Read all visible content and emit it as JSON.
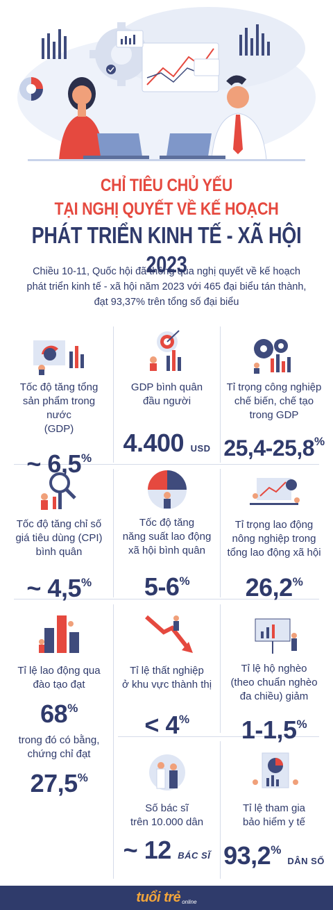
{
  "title": {
    "line1": "CHỈ TIÊU CHỦ YẾU",
    "line2": "TẠI NGHỊ QUYẾT VỀ KẾ HOẠCH",
    "line3": "PHÁT TRIỂN KINH TẾ - XÃ HỘI 2023"
  },
  "intro": {
    "line1": "Chiều 10-11, Quốc hội đã thông qua nghị quyết về kế hoạch",
    "line2": "phát triển kinh tế - xã hội năm 2023 với 465 đại biểu tán thành,",
    "line3": "đạt 93,37% trên tổng số đại biểu"
  },
  "items": [
    {
      "l1": "Tốc độ tăng tổng",
      "l2": "sản phẩm trong nước",
      "l3": "(GDP)",
      "prefix": "~ ",
      "num": "6,5",
      "sup": "%",
      "unit": ""
    },
    {
      "l1": "GDP bình quân",
      "l2": "đầu người",
      "l3": "",
      "prefix": "",
      "num": "4.400",
      "sup": "",
      "unit": "USD"
    },
    {
      "l1": "Tỉ trọng công nghiệp",
      "l2": "chế biến, chế tạo",
      "l3": "trong GDP",
      "prefix": "",
      "num": "25,4-25,8",
      "sup": "%",
      "unit": ""
    },
    {
      "l1": "Tốc độ tăng chỉ số",
      "l2": "giá tiêu dùng (CPI)",
      "l3": "bình quân",
      "prefix": "~ ",
      "num": "4,5",
      "sup": "%",
      "unit": ""
    },
    {
      "l1": "Tốc độ tăng",
      "l2": "năng suất lao động",
      "l3": "xã hội bình quân",
      "prefix": "",
      "num": "5-6",
      "sup": "%",
      "unit": ""
    },
    {
      "l1": "Tỉ trọng lao động",
      "l2": "nông nghiệp trong",
      "l3": "tổng lao động xã hội",
      "prefix": "",
      "num": "26,2",
      "sup": "%",
      "unit": ""
    },
    {
      "l1": "Tỉ lệ lao động qua",
      "l2": "đào tạo đạt",
      "l3": "",
      "prefix": "",
      "num": "68",
      "sup": "%",
      "unit": "",
      "extra1": "trong đó có bằng,",
      "extra2": "chứng chỉ đạt",
      "extra_num": "27,5",
      "extra_sup": "%"
    },
    {
      "l1": "Tỉ lệ thất nghiệp",
      "l2": "ở khu vực thành thị",
      "l3": "",
      "prefix": "< ",
      "num": "4",
      "sup": "%",
      "unit": ""
    },
    {
      "l1": "Tỉ lệ hộ nghèo",
      "l2": "(theo chuẩn nghèo",
      "l3": "đa chiều) giảm",
      "prefix": "",
      "num": "1-1,5",
      "sup": "%",
      "unit": ""
    },
    {
      "l1": "Số bác sĩ",
      "l2": "trên 10.000 dân",
      "l3": "",
      "prefix": "~ ",
      "num": "12",
      "sup": "",
      "unit": "BÁC SĨ"
    },
    {
      "l1": "Tỉ lệ tham gia",
      "l2": "bảo hiểm y tế",
      "l3": "",
      "prefix": "",
      "num": "93,2",
      "sup": "%",
      "unit": "DÂN SỐ"
    }
  ],
  "footer": {
    "logo": "tuổi trẻ",
    "sub": "online"
  },
  "colors": {
    "navy": "#2f3a6b",
    "red": "#e5493f",
    "orange": "#f3a53a"
  }
}
